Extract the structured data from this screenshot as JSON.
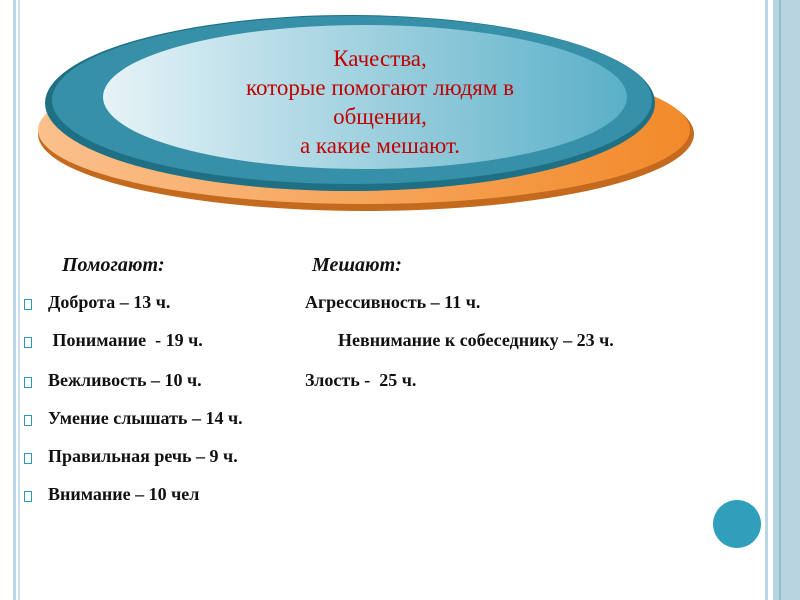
{
  "title": {
    "line1": "Качества,",
    "line2": "которые  помогают  людям в",
    "line3": "общении,",
    "line4": "а какие мешают."
  },
  "headers": {
    "help": "Помогают:",
    "hinder": "Мешают:"
  },
  "rows": [
    {
      "left": "Доброта – 13 ч.",
      "right": "Агрессивность – 11 ч."
    },
    {
      "left": " Понимание  - 19 ч.",
      "right": "Невнимание к собеседнику – 23 ч."
    },
    {
      "left": "Вежливость – 10 ч.",
      "right": "Злость -  25 ч."
    },
    {
      "left": "Умение слышать – 14 ч.",
      "right": ""
    },
    {
      "left": "Правильная речь – 9 ч.",
      "right": ""
    },
    {
      "left": "Внимание – 10 чел",
      "right": ""
    }
  ],
  "colors": {
    "accent": "#2c9ab7",
    "title": "#c00000",
    "orange": "#f28c2e"
  }
}
